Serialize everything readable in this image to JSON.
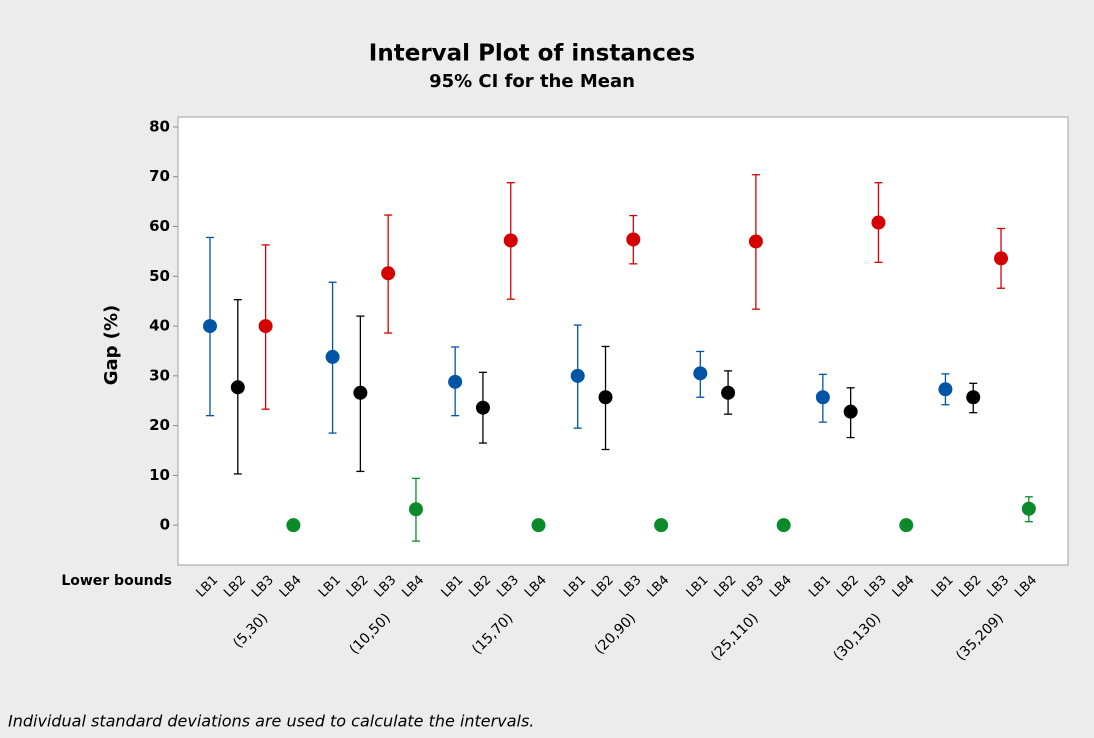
{
  "chart_data": {
    "type": "interval",
    "title": "Interval Plot of instances",
    "subtitle": "95% CI for the Mean",
    "y_label": "Gap (%)",
    "x_label": "Lower bounds",
    "footnote": "Individual standard deviations are used to calculate the intervals.",
    "groups": [
      "(5,30)",
      "(10,50)",
      "(15,70)",
      "(20,90)",
      "(25,110)",
      "(30,130)",
      "(35,209)"
    ],
    "ylim": [
      -8,
      82
    ],
    "yticks": [
      0,
      10,
      20,
      30,
      40,
      50,
      60,
      70,
      80
    ],
    "series": [
      {
        "name": "LB1",
        "color": "#0054a6",
        "values": [
          40,
          33.8,
          28.8,
          30,
          30.5,
          25.7,
          27.3
        ],
        "lower": [
          22,
          18.5,
          22,
          19.5,
          25.7,
          20.7,
          24.2
        ],
        "upper": [
          57.8,
          48.8,
          35.8,
          40.2,
          34.9,
          30.3,
          30.4
        ]
      },
      {
        "name": "LB2",
        "color": "#000000",
        "values": [
          27.7,
          26.6,
          23.6,
          25.7,
          26.6,
          22.8,
          25.7
        ],
        "lower": [
          10.3,
          10.8,
          16.5,
          15.2,
          22.3,
          17.6,
          22.6
        ],
        "upper": [
          45.3,
          42,
          30.7,
          35.9,
          31,
          27.6,
          28.5
        ]
      },
      {
        "name": "LB3",
        "color": "#d40000",
        "values": [
          40,
          50.6,
          57.2,
          57.4,
          57,
          60.8,
          53.6
        ],
        "lower": [
          23.3,
          38.6,
          45.4,
          52.5,
          43.4,
          52.8,
          47.6
        ],
        "upper": [
          56.3,
          62.3,
          68.8,
          62.2,
          70.4,
          68.8,
          59.6
        ]
      },
      {
        "name": "LB4",
        "color": "#0b8a2a",
        "values": [
          0,
          3.2,
          0,
          0,
          0,
          0,
          3.3
        ],
        "lower": [
          null,
          -3.2,
          null,
          null,
          null,
          null,
          0.7
        ],
        "upper": [
          null,
          9.4,
          null,
          null,
          null,
          null,
          5.7
        ]
      }
    ]
  }
}
